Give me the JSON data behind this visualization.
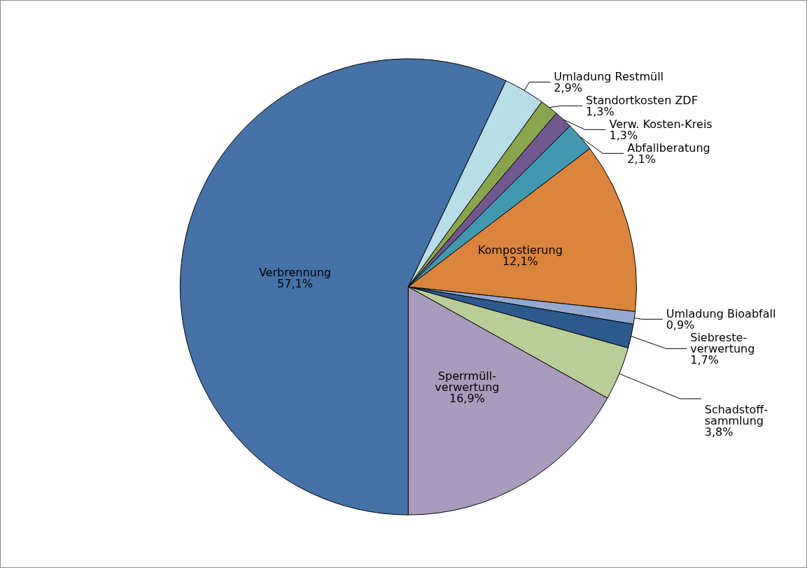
{
  "chart_data": {
    "type": "pie",
    "categories": [
      "Verbrennung",
      "Umladung Restmüll",
      "Standortkosten ZDF",
      "Verw. Kosten-Kreis",
      "Abfallberatung",
      "Kompostierung",
      "Umladung Bioabfall",
      "Siebreste-\nverwertung",
      "Schadstoff-\nsammlung",
      "Sperrmüll-\nverwertung"
    ],
    "values": [
      57.1,
      2.9,
      1.3,
      1.3,
      2.1,
      12.1,
      0.9,
      1.7,
      3.8,
      16.9
    ],
    "value_labels": [
      "57,1%",
      "2,9%",
      "1,3%",
      "1,3%",
      "2,1%",
      "12,1%",
      "0,9%",
      "1,7%",
      "3,8%",
      "16,9%"
    ],
    "colors": [
      "#4572a7",
      "#b7dde8",
      "#89a54e",
      "#71588f",
      "#4198af",
      "#db843d",
      "#93a9cf",
      "#2c5a8c",
      "#b9cd96",
      "#a99bbd"
    ],
    "legend": false
  }
}
